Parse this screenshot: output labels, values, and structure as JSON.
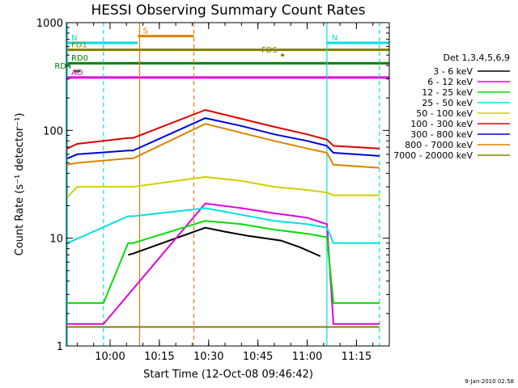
{
  "chart_data": {
    "type": "line",
    "title": "HESSI Observing Summary Count Rates",
    "xlabel": "Start Time (12-Oct-08 09:46:42)",
    "ylabel": "Count Rate (s⁻¹ detector⁻¹)",
    "yscale": "log",
    "ylim": [
      1,
      1000
    ],
    "xlim": [
      "09:46:42",
      "11:25:00"
    ],
    "x_ticks": [
      "10:00",
      "10:15",
      "10:30",
      "10:45",
      "11:00",
      "11:15"
    ],
    "y_ticks": [
      "1",
      "10",
      "100",
      "1000"
    ],
    "timestamp": "9-Jan-2010 02:58",
    "legend_title": "Det 1,3,4,5,6,9",
    "legend_position": "right",
    "series": [
      {
        "name": "3 - 6 keV",
        "color": "#000000",
        "points": [
          [
            "10:05:30",
            7
          ],
          [
            "10:07:00",
            7.2
          ],
          [
            "10:29:00",
            12.5
          ],
          [
            "10:35:00",
            11.5
          ],
          [
            "10:42:00",
            10.5
          ],
          [
            "10:52:00",
            9.5
          ],
          [
            "10:58:00",
            8.2
          ],
          [
            "11:04:00",
            6.8
          ]
        ]
      },
      {
        "name": "6 - 12 keV",
        "color": "#e000e0",
        "points": [
          [
            "09:47:00",
            1.6
          ],
          [
            "09:58:00",
            1.6
          ],
          [
            "10:29:00",
            21
          ],
          [
            "10:40:00",
            19
          ],
          [
            "10:50:00",
            17
          ],
          [
            "11:00:00",
            15.5
          ],
          [
            "11:06:00",
            13.5
          ],
          [
            "11:08:00",
            1.6
          ],
          [
            "11:22:00",
            1.6
          ]
        ]
      },
      {
        "name": "12 - 25 keV",
        "color": "#00e000",
        "points": [
          [
            "09:47:00",
            2.5
          ],
          [
            "09:58:00",
            2.5
          ],
          [
            "10:05:30",
            9
          ],
          [
            "10:07:00",
            9
          ],
          [
            "10:29:00",
            14.5
          ],
          [
            "10:40:00",
            13.5
          ],
          [
            "10:50:00",
            12
          ],
          [
            "11:00:00",
            11
          ],
          [
            "11:06:00",
            10.2
          ],
          [
            "11:08:00",
            2.5
          ],
          [
            "11:22:00",
            2.5
          ]
        ]
      },
      {
        "name": "25 - 50 keV",
        "color": "#00e0e0",
        "points": [
          [
            "09:47:00",
            9
          ],
          [
            "10:05:30",
            16
          ],
          [
            "10:07:00",
            16
          ],
          [
            "10:29:00",
            19
          ],
          [
            "10:40:00",
            16.5
          ],
          [
            "10:50:00",
            14.5
          ],
          [
            "11:00:00",
            13.5
          ],
          [
            "11:06:00",
            12.5
          ],
          [
            "11:08:00",
            9
          ],
          [
            "11:22:00",
            9
          ]
        ]
      },
      {
        "name": "50 - 100 keV",
        "color": "#d0d000",
        "points": [
          [
            "09:47:00",
            24
          ],
          [
            "09:50:00",
            30
          ],
          [
            "10:05:30",
            30
          ],
          [
            "10:07:00",
            30
          ],
          [
            "10:29:00",
            37
          ],
          [
            "10:40:00",
            34
          ],
          [
            "10:50:00",
            30
          ],
          [
            "11:00:00",
            28
          ],
          [
            "11:06:00",
            26.5
          ],
          [
            "11:08:00",
            25
          ],
          [
            "11:22:00",
            25
          ]
        ]
      },
      {
        "name": "100 - 300 keV",
        "color": "#e00000",
        "points": [
          [
            "09:47:00",
            68
          ],
          [
            "09:50:00",
            75
          ],
          [
            "10:05:30",
            85
          ],
          [
            "10:07:00",
            85
          ],
          [
            "10:29:00",
            155
          ],
          [
            "10:40:00",
            128
          ],
          [
            "10:50:00",
            108
          ],
          [
            "11:00:00",
            92
          ],
          [
            "11:06:00",
            82
          ],
          [
            "11:08:00",
            72
          ],
          [
            "11:22:00",
            68
          ]
        ]
      },
      {
        "name": "300 - 800 keV",
        "color": "#0000e0",
        "points": [
          [
            "09:47:00",
            55
          ],
          [
            "09:50:00",
            60
          ],
          [
            "10:05:30",
            65
          ],
          [
            "10:07:00",
            65
          ],
          [
            "10:29:00",
            130
          ],
          [
            "10:40:00",
            110
          ],
          [
            "10:50:00",
            92
          ],
          [
            "11:00:00",
            80
          ],
          [
            "11:06:00",
            72
          ],
          [
            "11:08:00",
            62
          ],
          [
            "11:22:00",
            58
          ]
        ]
      },
      {
        "name": "800 - 7000 keV",
        "color": "#e08000",
        "points": [
          [
            "09:47:00",
            48
          ],
          [
            "09:50:00",
            50
          ],
          [
            "10:05:30",
            55
          ],
          [
            "10:07:00",
            55
          ],
          [
            "10:29:00",
            115
          ],
          [
            "10:40:00",
            95
          ],
          [
            "10:50:00",
            80
          ],
          [
            "11:00:00",
            68
          ],
          [
            "11:06:00",
            62
          ],
          [
            "11:08:00",
            48
          ],
          [
            "11:22:00",
            45
          ]
        ]
      },
      {
        "name": "7000 - 20000 keV",
        "color": "#808000",
        "points": [
          [
            "09:47:00",
            1.5
          ],
          [
            "09:58:00",
            1.5
          ],
          [
            "10:29:00",
            1.5
          ],
          [
            "10:40:00",
            1.5
          ],
          [
            "10:50:00",
            1.5
          ],
          [
            "11:06:00",
            1.5
          ],
          [
            "11:22:00",
            1.5
          ]
        ]
      }
    ],
    "flag_bars": [
      {
        "label": "S",
        "color": "#e08000",
        "y": 750,
        "x": [
          "10:08:30",
          "10:25:30"
        ]
      },
      {
        "label": "N",
        "color": "#00e0e0",
        "y": 650,
        "x": [
          "09:46:42",
          "10:08:30"
        ]
      },
      {
        "label": "N",
        "color": "#00e0e0",
        "y": 650,
        "x": [
          "11:06:00",
          "11:25:00"
        ]
      },
      {
        "label": "FD1",
        "color": "#808000",
        "y": 560,
        "x": [
          "09:46:42",
          "11:25:00"
        ]
      },
      {
        "label": "FDS",
        "color": "#808000",
        "y": 500,
        "x": [
          "10:52:00",
          "10:53:00"
        ]
      },
      {
        "label": "RD0",
        "color": "#008000",
        "y": 420,
        "x": [
          "09:46:42",
          "11:25:00"
        ]
      },
      {
        "label": "RD4",
        "color": "#008000",
        "y": 355,
        "x": [
          "09:49:00",
          "09:51:00"
        ]
      },
      {
        "label": "AO",
        "color": "#e000e0",
        "y": 310,
        "x": [
          "09:46:42",
          "11:25:00"
        ]
      }
    ],
    "vertical_lines": [
      {
        "time": "10:09:00",
        "color": "#e08000",
        "style": "solid"
      },
      {
        "time": "10:25:30",
        "color": "#e08000",
        "style": "dashed"
      },
      {
        "time": "09:58:00",
        "color": "#00e0e0",
        "style": "dashed"
      },
      {
        "time": "11:06:00",
        "color": "#00e0e0",
        "style": "solid"
      },
      {
        "time": "11:22:00",
        "color": "#00e0e0",
        "style": "dashed"
      },
      {
        "time": "09:47:00",
        "color": "#00e0e0",
        "style": "solid"
      }
    ]
  }
}
